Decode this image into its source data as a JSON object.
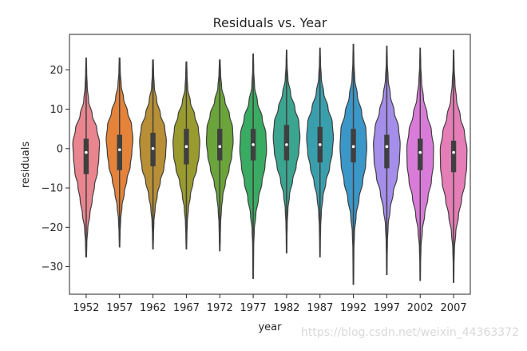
{
  "chart_data": {
    "type": "violin",
    "title": "Residuals vs. Year",
    "xlabel": "year",
    "ylabel": "residuals",
    "ylim": [
      -37,
      29
    ],
    "yticks": [
      20,
      10,
      0,
      -10,
      -20,
      -30
    ],
    "yticklabels": [
      "20",
      "10",
      "0",
      "−10",
      "−20",
      "−30"
    ],
    "categories": [
      "1952",
      "1957",
      "1962",
      "1967",
      "1972",
      "1977",
      "1982",
      "1987",
      "1992",
      "1997",
      "2002",
      "2007"
    ],
    "colors": [
      "#e8858f",
      "#e5833a",
      "#b88f36",
      "#9a9b2f",
      "#6ba43a",
      "#3aab62",
      "#3ba58f",
      "#3a9fac",
      "#3b97c8",
      "#a48eea",
      "#d97cd9",
      "#e57eb6"
    ],
    "series": [
      {
        "year": "1952",
        "min": -27.5,
        "max": 23,
        "q1": -6.5,
        "median": -1,
        "q3": 2.5,
        "mean": -1,
        "widths": [
          0.02,
          0.04,
          0.08,
          0.18,
          0.45,
          0.8,
          1.0,
          0.95,
          0.85,
          0.62,
          0.45,
          0.28,
          0.12,
          0.05,
          0.03
        ]
      },
      {
        "year": "1957",
        "min": -25,
        "max": 23,
        "q1": -5.5,
        "median": -0.3,
        "q3": 3.5,
        "mean": -0.3,
        "widths": [
          0.03,
          0.05,
          0.12,
          0.3,
          0.6,
          0.9,
          1.0,
          0.92,
          0.8,
          0.55,
          0.35,
          0.18,
          0.08,
          0.04,
          0.02
        ]
      },
      {
        "year": "1962",
        "min": -25.5,
        "max": 22.5,
        "q1": -4.5,
        "median": 0,
        "q3": 4,
        "mean": 0,
        "widths": [
          0.03,
          0.05,
          0.1,
          0.28,
          0.55,
          0.88,
          1.0,
          0.95,
          0.82,
          0.55,
          0.32,
          0.16,
          0.07,
          0.04,
          0.02
        ]
      },
      {
        "year": "1967",
        "min": -25.5,
        "max": 22,
        "q1": -4,
        "median": 0.5,
        "q3": 5,
        "mean": 0.5,
        "widths": [
          0.03,
          0.05,
          0.1,
          0.3,
          0.62,
          0.9,
          1.0,
          0.95,
          0.78,
          0.5,
          0.3,
          0.15,
          0.07,
          0.04,
          0.02
        ]
      },
      {
        "year": "1972",
        "min": -26,
        "max": 22.5,
        "q1": -3,
        "median": 0.5,
        "q3": 5,
        "mean": 0.5,
        "widths": [
          0.03,
          0.06,
          0.14,
          0.38,
          0.72,
          0.96,
          1.0,
          0.9,
          0.7,
          0.42,
          0.22,
          0.12,
          0.06,
          0.04,
          0.02
        ]
      },
      {
        "year": "1977",
        "min": -33,
        "max": 24,
        "q1": -3,
        "median": 1,
        "q3": 5,
        "mean": 1,
        "widths": [
          0.02,
          0.04,
          0.1,
          0.32,
          0.68,
          0.95,
          1.0,
          0.88,
          0.66,
          0.4,
          0.2,
          0.08,
          0.04,
          0.03,
          0.02
        ]
      },
      {
        "year": "1982",
        "min": -26.5,
        "max": 25,
        "q1": -3,
        "median": 1,
        "q3": 6,
        "mean": 1,
        "widths": [
          0.02,
          0.04,
          0.1,
          0.3,
          0.62,
          0.92,
          1.0,
          0.92,
          0.72,
          0.45,
          0.22,
          0.1,
          0.05,
          0.03,
          0.02
        ]
      },
      {
        "year": "1987",
        "min": -27.5,
        "max": 25.5,
        "q1": -3.5,
        "median": 1,
        "q3": 5.5,
        "mean": 1,
        "widths": [
          0.02,
          0.04,
          0.1,
          0.28,
          0.6,
          0.92,
          1.0,
          0.92,
          0.72,
          0.44,
          0.22,
          0.1,
          0.05,
          0.03,
          0.02
        ]
      },
      {
        "year": "1992",
        "min": -34.5,
        "max": 26.5,
        "q1": -3.5,
        "median": 0.5,
        "q3": 5,
        "mean": 0.5,
        "widths": [
          0.02,
          0.04,
          0.1,
          0.3,
          0.62,
          0.94,
          1.0,
          0.92,
          0.7,
          0.42,
          0.2,
          0.08,
          0.04,
          0.03,
          0.02
        ]
      },
      {
        "year": "1997",
        "min": -32,
        "max": 26,
        "q1": -5,
        "median": 0.5,
        "q3": 3.5,
        "mean": 0.5,
        "widths": [
          0.02,
          0.04,
          0.1,
          0.26,
          0.55,
          0.88,
          1.0,
          0.95,
          0.78,
          0.48,
          0.25,
          0.1,
          0.05,
          0.03,
          0.02
        ]
      },
      {
        "year": "2002",
        "min": -33.5,
        "max": 25.5,
        "q1": -5.5,
        "median": -1,
        "q3": 2.5,
        "mean": -1,
        "widths": [
          0.02,
          0.04,
          0.1,
          0.24,
          0.52,
          0.84,
          1.0,
          0.98,
          0.84,
          0.58,
          0.34,
          0.16,
          0.06,
          0.03,
          0.02
        ]
      },
      {
        "year": "2007",
        "min": -34,
        "max": 25,
        "q1": -6,
        "median": -1,
        "q3": 2,
        "mean": -1,
        "widths": [
          0.02,
          0.04,
          0.1,
          0.22,
          0.5,
          0.82,
          1.0,
          0.98,
          0.85,
          0.6,
          0.36,
          0.16,
          0.06,
          0.03,
          0.02
        ]
      }
    ]
  },
  "watermark": "https://blog.csdn.net/weixin_44363372"
}
